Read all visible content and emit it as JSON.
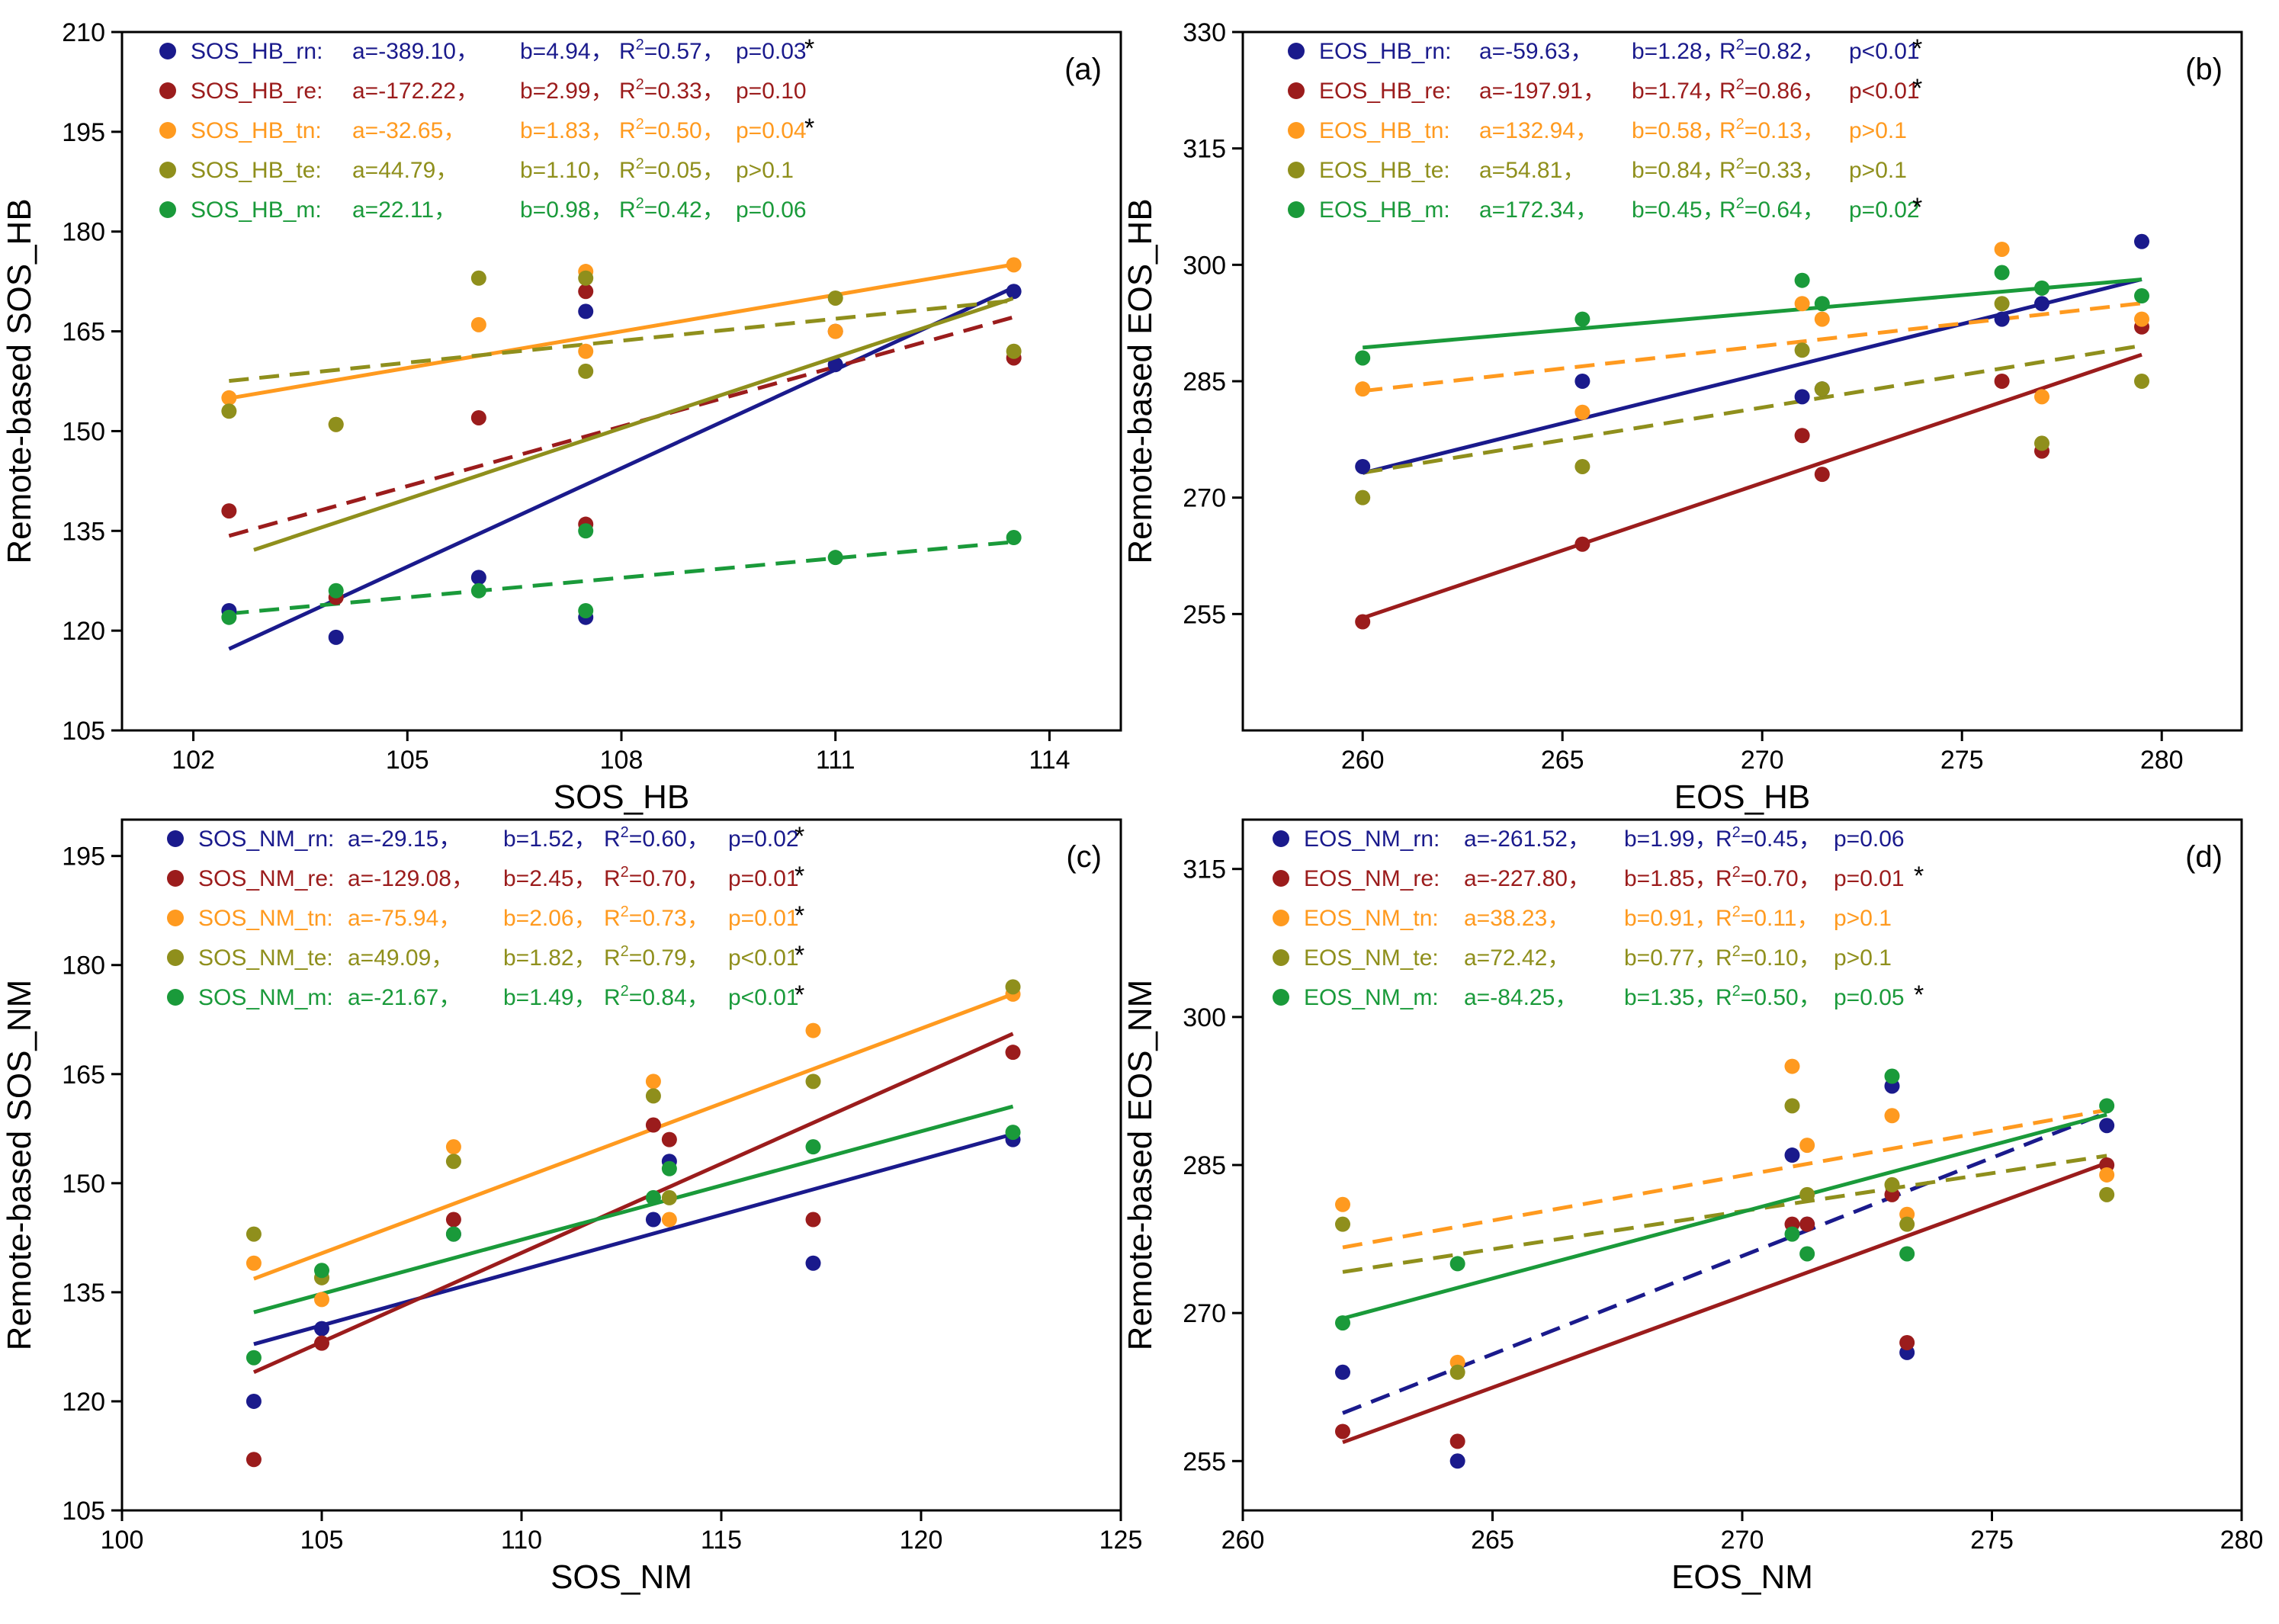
{
  "chart_data": [
    {
      "type": "scatter",
      "panel_label": "(a)",
      "xlabel": "SOS_HB",
      "ylabel": "Remote-based SOS_HB",
      "xlim": [
        101,
        115
      ],
      "ylim": [
        105,
        210
      ],
      "xticks": [
        102,
        105,
        108,
        111,
        114
      ],
      "yticks": [
        105,
        120,
        135,
        150,
        165,
        180,
        195,
        210
      ],
      "series": [
        {
          "name": "SOS_HB_rn",
          "color": "#1a1a8c",
          "fit_style": "solid",
          "fit_a": -389.1,
          "fit_b": 4.94,
          "legend": {
            "name": "SOS_HB_rn:",
            "a": "a=-389.10，",
            "b": "b=4.94，",
            "r2": "0.57，",
            "p": "p=0.03",
            "sig": "*"
          },
          "x": [
            102.5,
            104,
            106,
            107.5,
            107.5,
            111,
            113.5
          ],
          "y": [
            123,
            119,
            128,
            168,
            122,
            160,
            171
          ]
        },
        {
          "name": "SOS_HB_re",
          "color": "#9b1c1c",
          "fit_style": "dashed",
          "fit_a": -172.22,
          "fit_b": 2.99,
          "legend": {
            "name": "SOS_HB_re:",
            "a": "a=-172.22，",
            "b": "b=2.99，",
            "r2": "0.33，",
            "p": "p=0.10",
            "sig": ""
          },
          "x": [
            102.5,
            104,
            106,
            107.5,
            107.5,
            111,
            113.5
          ],
          "y": [
            138,
            125,
            152,
            136,
            171,
            165,
            161
          ]
        },
        {
          "name": "SOS_HB_tn",
          "color": "#ff9a1f",
          "fit_style": "solid",
          "fit_a": -32.65,
          "fit_b": 1.83,
          "legend": {
            "name": "SOS_HB_tn:",
            "a": "a=-32.65，",
            "b": "b=1.83，",
            "r2": "0.50，",
            "p": "p=0.04",
            "sig": "*"
          },
          "x": [
            102.5,
            104,
            106,
            107.5,
            107.5,
            111,
            113.5
          ],
          "y": [
            155,
            151,
            166,
            162,
            174,
            165,
            175
          ]
        },
        {
          "name": "SOS_HB_te",
          "color": "#8f8f1c",
          "fit_style": "dashed",
          "fit_a": 44.79,
          "fit_b": 1.1,
          "legend": {
            "name": "SOS_HB_te:",
            "a": "a=44.79，",
            "b": "b=1.10，",
            "r2": "0.05，",
            "p": "p>0.1",
            "sig": ""
          },
          "x": [
            102.5,
            104,
            106,
            107.5,
            107.5,
            111,
            113.5
          ],
          "y": [
            153,
            151,
            173,
            159,
            173,
            170,
            162
          ]
        },
        {
          "name": "SOS_HB_m",
          "color": "#1a9a3a",
          "fit_style": "dashed",
          "fit_a": 22.11,
          "fit_b": 0.98,
          "legend": {
            "name": "SOS_HB_m:",
            "a": "a=22.11，",
            "b": "b=0.98，",
            "r2": "0.42，",
            "p": "p=0.06",
            "sig": ""
          },
          "x": [
            102.5,
            104,
            106,
            107.5,
            107.5,
            111,
            113.5
          ],
          "y": [
            122,
            126,
            126,
            135,
            123,
            131,
            134
          ]
        }
      ]
    },
    {
      "type": "scatter",
      "panel_label": "(b)",
      "xlabel": "EOS_HB",
      "ylabel": "Remote-based EOS_HB",
      "xlim": [
        257,
        282
      ],
      "ylim": [
        240,
        330
      ],
      "xticks": [
        260,
        265,
        270,
        275,
        280
      ],
      "yticks": [
        255,
        270,
        285,
        300,
        315,
        330
      ],
      "series": [
        {
          "name": "EOS_HB_rn",
          "color": "#1a1a8c",
          "fit_style": "solid",
          "fit_a": -59.63,
          "fit_b": 1.28,
          "legend": {
            "name": "EOS_HB_rn:",
            "a": "a=-59.63，",
            "b": "b=1.28，",
            "r2": "0.82，",
            "p": "p<0.01",
            "sig": "*"
          },
          "x": [
            260,
            265.5,
            271,
            271.5,
            276,
            277,
            279.5
          ],
          "y": [
            274,
            285,
            283,
            284,
            293,
            295,
            303
          ]
        },
        {
          "name": "EOS_HB_re",
          "color": "#9b1c1c",
          "fit_style": "solid",
          "fit_a": -197.91,
          "fit_b": 1.74,
          "legend": {
            "name": "EOS_HB_re:",
            "a": "a=-197.91，",
            "b": "b=1.74，",
            "r2": "0.86，",
            "p": "p<0.01",
            "sig": "*"
          },
          "x": [
            260,
            265.5,
            271,
            271.5,
            276,
            277,
            279.5
          ],
          "y": [
            254,
            264,
            278,
            273,
            285,
            276,
            292
          ]
        },
        {
          "name": "EOS_HB_tn",
          "color": "#ff9a1f",
          "fit_style": "dashed",
          "fit_a": 132.94,
          "fit_b": 0.58,
          "legend": {
            "name": "EOS_HB_tn:",
            "a": "a=132.94，",
            "b": "b=0.58，",
            "r2": "0.13，",
            "p": "p>0.1",
            "sig": ""
          },
          "x": [
            260,
            265.5,
            271,
            271.5,
            276,
            277,
            279.5
          ],
          "y": [
            284,
            281,
            295,
            293,
            302,
            283,
            293
          ]
        },
        {
          "name": "EOS_HB_te",
          "color": "#8f8f1c",
          "fit_style": "dashed",
          "fit_a": 54.81,
          "fit_b": 0.84,
          "legend": {
            "name": "EOS_HB_te:",
            "a": "a=54.81，",
            "b": "b=0.84，",
            "r2": "0.33，",
            "p": "p>0.1",
            "sig": ""
          },
          "x": [
            260,
            265.5,
            271,
            271.5,
            276,
            277,
            279.5
          ],
          "y": [
            270,
            274,
            289,
            284,
            295,
            277,
            285
          ]
        },
        {
          "name": "EOS_HB_m",
          "color": "#1a9a3a",
          "fit_style": "solid",
          "fit_a": 172.34,
          "fit_b": 0.45,
          "legend": {
            "name": "EOS_HB_m:",
            "a": "a=172.34，",
            "b": "b=0.45，",
            "r2": "0.64，",
            "p": "p=0.02",
            "sig": "*"
          },
          "x": [
            260,
            265.5,
            271,
            271.5,
            276,
            277,
            279.5
          ],
          "y": [
            288,
            293,
            298,
            295,
            299,
            297,
            296
          ]
        }
      ]
    },
    {
      "type": "scatter",
      "panel_label": "(c)",
      "xlabel": "SOS_NM",
      "ylabel": "Remote-based SOS_NM",
      "xlim": [
        100,
        125
      ],
      "ylim": [
        105,
        200
      ],
      "xticks": [
        100,
        105,
        110,
        115,
        120,
        125
      ],
      "yticks": [
        105,
        120,
        135,
        150,
        165,
        180,
        195
      ],
      "series": [
        {
          "name": "SOS_NM_rn",
          "color": "#1a1a8c",
          "fit_style": "solid",
          "fit_a": -29.15,
          "fit_b": 1.52,
          "legend": {
            "name": "SOS_NM_rn:",
            "a": "a=-29.15，",
            "b": "b=1.52，",
            "r2": "0.60，",
            "p": "p=0.02",
            "sig": "*"
          },
          "x": [
            103.3,
            105,
            108.3,
            113.3,
            113.7,
            117.3,
            122.3
          ],
          "y": [
            120,
            130,
            143,
            145,
            153,
            139,
            156
          ]
        },
        {
          "name": "SOS_NM_re",
          "color": "#9b1c1c",
          "fit_style": "solid",
          "fit_a": -129.08,
          "fit_b": 2.45,
          "legend": {
            "name": "SOS_NM_re:",
            "a": "a=-129.08，",
            "b": "b=2.45，",
            "r2": "0.70，",
            "p": "p=0.01",
            "sig": "*"
          },
          "x": [
            103.3,
            105,
            108.3,
            113.3,
            113.7,
            117.3,
            122.3
          ],
          "y": [
            112,
            128,
            145,
            158,
            156,
            145,
            168
          ]
        },
        {
          "name": "SOS_NM_tn",
          "color": "#ff9a1f",
          "fit_style": "solid",
          "fit_a": -75.94,
          "fit_b": 2.06,
          "legend": {
            "name": "SOS_NM_tn:",
            "a": "a=-75.94，",
            "b": "b=2.06，",
            "r2": "0.73，",
            "p": "p=0.01",
            "sig": "*"
          },
          "x": [
            103.3,
            105,
            108.3,
            113.3,
            113.7,
            117.3,
            122.3
          ],
          "y": [
            139,
            134,
            155,
            164,
            145,
            171,
            176
          ]
        },
        {
          "name": "SOS_NM_te",
          "color": "#8f8f1c",
          "fit_style": "solid",
          "fit_a": 49.09,
          "fit_b": 1.82,
          "legend": {
            "name": "SOS_NM_te:",
            "a": "a=49.09，",
            "b": "b=1.82，",
            "r2": "0.79，",
            "p": "p<0.01",
            "sig": "*"
          },
          "x": [
            103.3,
            105,
            108.3,
            113.3,
            113.7,
            117.3,
            122.3
          ],
          "y": [
            143,
            137,
            153,
            162,
            148,
            164,
            177
          ]
        },
        {
          "name": "SOS_NM_m",
          "color": "#1a9a3a",
          "fit_style": "solid",
          "fit_a": -21.67,
          "fit_b": 1.49,
          "legend": {
            "name": "SOS_NM_m:",
            "a": "a=-21.67，",
            "b": "b=1.49，",
            "r2": "0.84，",
            "p": "p<0.01",
            "sig": "*"
          },
          "x": [
            103.3,
            105,
            108.3,
            113.3,
            113.7,
            117.3,
            122.3
          ],
          "y": [
            126,
            138,
            143,
            148,
            152,
            155,
            157
          ]
        }
      ]
    },
    {
      "type": "scatter",
      "panel_label": "(d)",
      "xlabel": "EOS_NM",
      "ylabel": "Remote-based EOS_NM",
      "xlim": [
        260,
        280
      ],
      "ylim": [
        250,
        320
      ],
      "xticks": [
        260,
        265,
        270,
        275,
        280
      ],
      "yticks": [
        255,
        270,
        285,
        300,
        315
      ],
      "series": [
        {
          "name": "EOS_NM_rn",
          "color": "#1a1a8c",
          "fit_style": "dashed",
          "fit_a": -261.52,
          "fit_b": 1.99,
          "legend": {
            "name": "EOS_NM_rn:",
            "a": "a=-261.52，",
            "b": "b=1.99，",
            "r2": "0.45，",
            "p": "p=0.06",
            "sig": ""
          },
          "x": [
            262,
            264.3,
            271,
            271.3,
            273,
            273.3,
            277.3
          ],
          "y": [
            264,
            255,
            286,
            279,
            293,
            266,
            289
          ]
        },
        {
          "name": "EOS_NM_re",
          "color": "#9b1c1c",
          "fit_style": "solid",
          "fit_a": -227.8,
          "fit_b": 1.85,
          "legend": {
            "name": "EOS_NM_re:",
            "a": "a=-227.80，",
            "b": "b=1.85，",
            "r2": "0.70，",
            "p": "p=0.01",
            "sig": "*"
          },
          "x": [
            262,
            264.3,
            271,
            271.3,
            273,
            273.3,
            277.3
          ],
          "y": [
            258,
            257,
            279,
            279,
            282,
            267,
            285
          ]
        },
        {
          "name": "EOS_NM_tn",
          "color": "#ff9a1f",
          "fit_style": "dashed",
          "fit_a": 38.23,
          "fit_b": 0.91,
          "legend": {
            "name": "EOS_NM_tn:",
            "a": "a=38.23，",
            "b": "b=0.91，",
            "r2": "0.11，",
            "p": "p>0.1",
            "sig": ""
          },
          "x": [
            262,
            264.3,
            271,
            271.3,
            273,
            273.3,
            277.3
          ],
          "y": [
            281,
            265,
            295,
            287,
            290,
            280,
            284
          ]
        },
        {
          "name": "EOS_NM_te",
          "color": "#8f8f1c",
          "fit_style": "dashed",
          "fit_a": 72.42,
          "fit_b": 0.77,
          "legend": {
            "name": "EOS_NM_te:",
            "a": "a=72.42，",
            "b": "b=0.77，",
            "r2": "0.10，",
            "p": "p>0.1",
            "sig": ""
          },
          "x": [
            262,
            264.3,
            271,
            271.3,
            273,
            273.3,
            277.3
          ],
          "y": [
            279,
            264,
            291,
            282,
            283,
            279,
            282
          ]
        },
        {
          "name": "EOS_NM_m",
          "color": "#1a9a3a",
          "fit_style": "solid",
          "fit_a": -84.25,
          "fit_b": 1.35,
          "legend": {
            "name": "EOS_NM_m:",
            "a": "a=-84.25，",
            "b": "b=1.35，",
            "r2": "0.50，",
            "p": "p=0.05",
            "sig": "*"
          },
          "x": [
            262,
            264.3,
            271,
            271.3,
            273,
            273.3,
            277.3
          ],
          "y": [
            269,
            275,
            278,
            276,
            294,
            276,
            291
          ]
        }
      ]
    }
  ]
}
